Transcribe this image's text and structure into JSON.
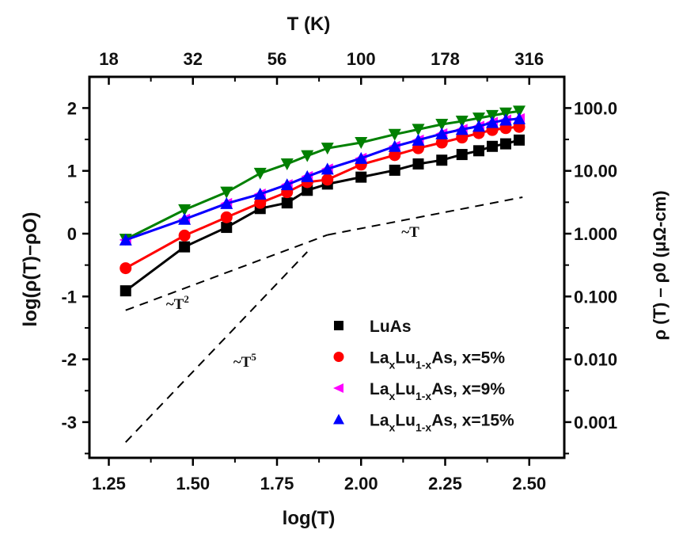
{
  "chart_data": {
    "type": "line",
    "title": "",
    "xlabel": "log(T)",
    "ylabel": "log(ρ(T)−ρO)",
    "top_xlabel": "T (K)",
    "right_ylabel": "ρ (T) – ρ0 (μΩ-cm)",
    "xlim": [
      1.2,
      2.6
    ],
    "ylim": [
      -3.55,
      2.5
    ],
    "x_ticks": [
      "1.25",
      "1.50",
      "1.75",
      "2.00",
      "2.25",
      "2.50"
    ],
    "x_tick_values": [
      1.25,
      1.5,
      1.75,
      2.0,
      2.25,
      2.5
    ],
    "y_ticks": [
      "2",
      "1",
      "0",
      "-1",
      "-2",
      "-3"
    ],
    "y_tick_values": [
      2,
      1,
      0,
      -1,
      -2,
      -3
    ],
    "top_x_ticks": [
      "18",
      "32",
      "56",
      "100",
      "178",
      "316"
    ],
    "right_y_ticks": [
      "100.0",
      "10.00",
      "1.000",
      "0.100",
      "0.010",
      "0.001"
    ],
    "grid": false,
    "legend_position": "bottom-right",
    "series": [
      {
        "name": "LuAs",
        "color": "#000000",
        "marker": "square",
        "x": [
          1.3,
          1.475,
          1.6,
          1.7,
          1.78,
          1.84,
          1.9,
          2.0,
          2.1,
          2.17,
          2.24,
          2.3,
          2.35,
          2.39,
          2.43,
          2.47
        ],
        "y": [
          -0.91,
          -0.21,
          0.1,
          0.4,
          0.49,
          0.69,
          0.79,
          0.9,
          1.01,
          1.11,
          1.17,
          1.26,
          1.32,
          1.39,
          1.43,
          1.49
        ]
      },
      {
        "name": "LaxLu1-xAs, x=5%",
        "color": "#ff0000",
        "marker": "circle",
        "x": [
          1.3,
          1.475,
          1.6,
          1.7,
          1.78,
          1.84,
          1.9,
          2.0,
          2.1,
          2.17,
          2.24,
          2.3,
          2.35,
          2.39,
          2.43,
          2.47
        ],
        "y": [
          -0.55,
          -0.03,
          0.26,
          0.49,
          0.66,
          0.82,
          0.86,
          1.1,
          1.25,
          1.36,
          1.45,
          1.53,
          1.6,
          1.65,
          1.68,
          1.7
        ]
      },
      {
        "name": "LaxLu1-xAs, x=9%",
        "color": "#ff00ff",
        "marker": "triangle-left",
        "x": [
          1.3,
          1.475,
          1.6,
          1.7,
          1.78,
          1.84,
          1.9,
          2.0,
          2.1,
          2.17,
          2.24,
          2.3,
          2.35,
          2.39,
          2.43,
          2.47
        ],
        "y": [
          -0.1,
          0.23,
          0.48,
          0.63,
          0.78,
          0.91,
          1.03,
          1.2,
          1.39,
          1.49,
          1.59,
          1.66,
          1.71,
          1.77,
          1.81,
          1.83
        ]
      },
      {
        "name": "LaxLu1-xAs, x=15%",
        "color": "#0000ff",
        "marker": "triangle-up",
        "x": [
          1.3,
          1.475,
          1.6,
          1.7,
          1.78,
          1.84,
          1.9,
          2.0,
          2.1,
          2.17,
          2.24,
          2.3,
          2.35,
          2.39,
          2.43,
          2.47
        ],
        "y": [
          -0.1,
          0.23,
          0.48,
          0.63,
          0.78,
          0.91,
          1.03,
          1.2,
          1.39,
          1.49,
          1.59,
          1.66,
          1.71,
          1.77,
          1.81,
          1.83
        ]
      },
      {
        "name": "(unlabeled, green)",
        "color": "#008000",
        "marker": "triangle-down",
        "in_legend": false,
        "x": [
          1.3,
          1.475,
          1.6,
          1.7,
          1.78,
          1.84,
          1.9,
          2.0,
          2.1,
          2.17,
          2.24,
          2.3,
          2.35,
          2.39,
          2.43,
          2.47
        ],
        "y": [
          -0.09,
          0.38,
          0.66,
          0.96,
          1.11,
          1.24,
          1.36,
          1.45,
          1.58,
          1.66,
          1.74,
          1.79,
          1.84,
          1.88,
          1.92,
          1.95
        ]
      }
    ],
    "guide_lines": [
      {
        "label": "~T",
        "superscript": "",
        "x": [
          1.9,
          2.48
        ],
        "y": [
          -0.02,
          0.58
        ],
        "label_at": [
          2.12,
          -0.05
        ]
      },
      {
        "label": "~T",
        "superscript": "2",
        "x": [
          1.3,
          1.9
        ],
        "y": [
          -1.22,
          -0.02
        ],
        "label_at": [
          1.42,
          -1.2
        ]
      },
      {
        "label": "~T",
        "superscript": "5",
        "x": [
          1.3,
          1.84
        ],
        "y": [
          -3.32,
          -0.29
        ],
        "label_at": [
          1.62,
          -2.12
        ]
      }
    ]
  },
  "legend": [
    {
      "main": "LuAs",
      "sub1": "",
      "mid": "",
      "sub2": "",
      "tail": ""
    },
    {
      "main": "La",
      "sub1": "x",
      "mid": "Lu",
      "sub2": "1-x",
      "tail": "As, x=5%"
    },
    {
      "main": "La",
      "sub1": "x",
      "mid": "Lu",
      "sub2": "1-x",
      "tail": "As, x=9%"
    },
    {
      "main": "La",
      "sub1": "x",
      "mid": "Lu",
      "sub2": "1-x",
      "tail": "As, x=15%"
    }
  ]
}
